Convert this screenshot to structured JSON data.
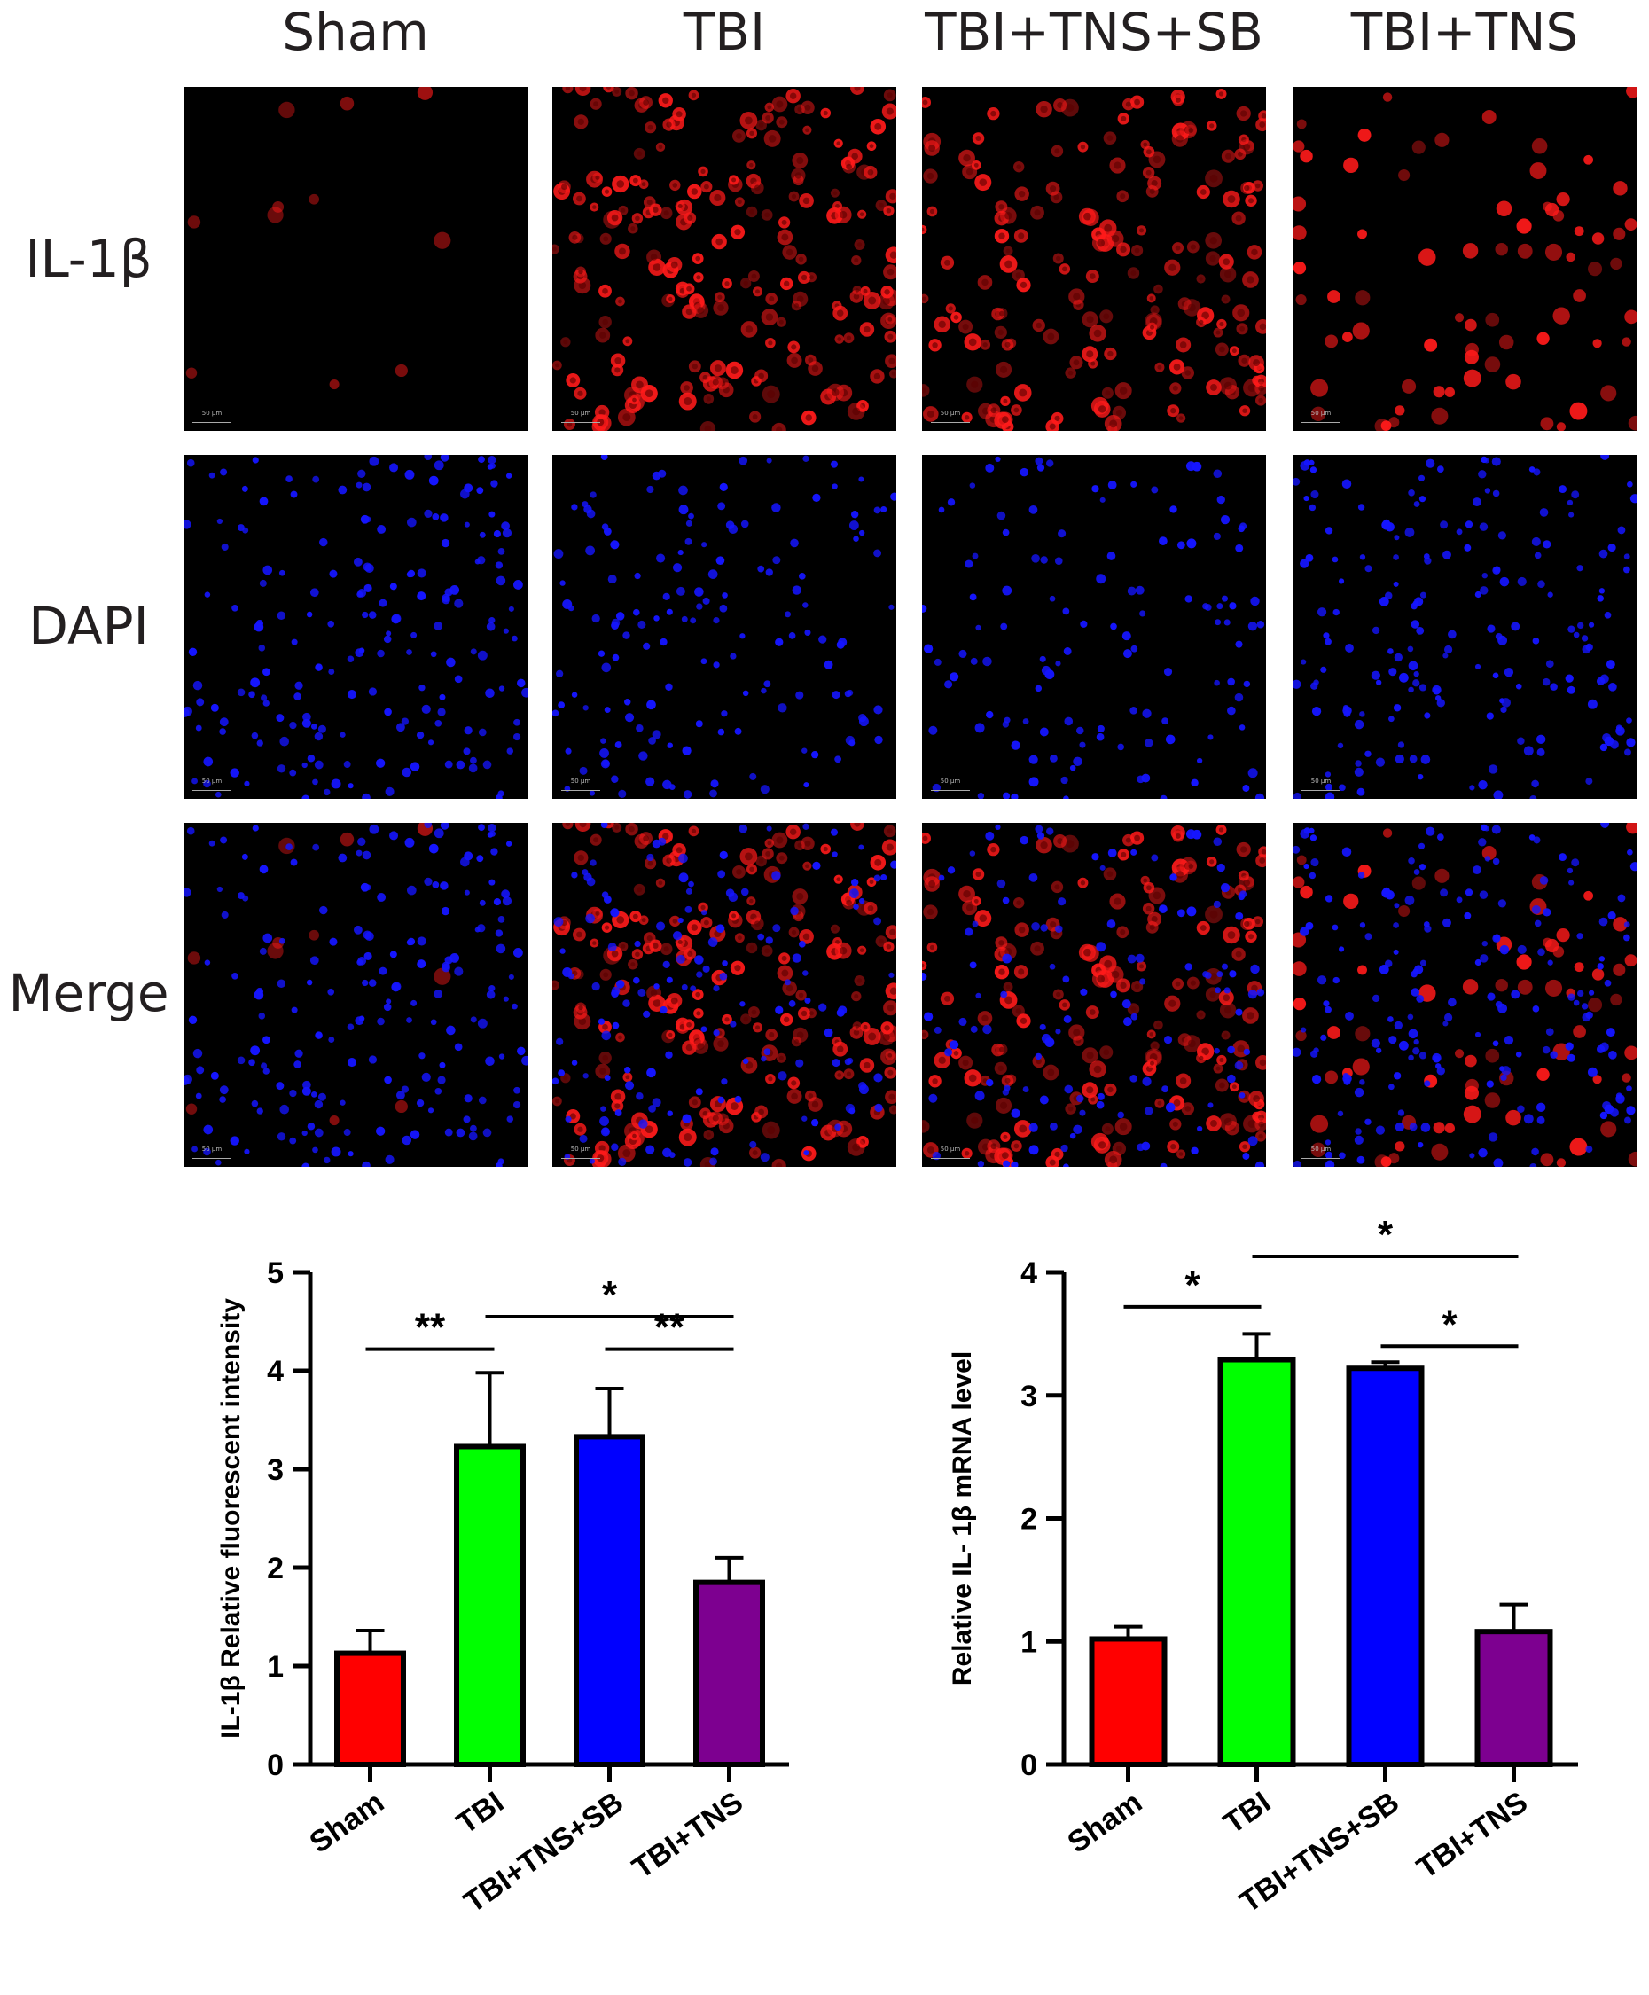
{
  "columns": [
    "Sham",
    "TBI",
    "TBI+TNS+SB",
    "TBI+TNS"
  ],
  "rows": [
    "IL-1β",
    "DAPI",
    "Merge"
  ],
  "scale_bar_label": "50 μm",
  "colors": {
    "sham": "#ff0000",
    "tbi": "#00ff00",
    "tbi_tns_sb": "#0000ff",
    "tbi_tns": "#7d0090",
    "il1b_stain": "#ff1a1a",
    "dapi_stain": "#1515ff"
  },
  "panel_intensity": {
    "il1b": [
      0.05,
      1.0,
      0.85,
      0.35
    ],
    "dapi": [
      1.0,
      0.8,
      0.65,
      1.0
    ]
  },
  "chart_data": [
    {
      "type": "bar",
      "categories": [
        "Sham",
        "TBI",
        "TBI+TNS+SB",
        "TBI+TNS"
      ],
      "values": [
        1.13,
        3.23,
        3.33,
        1.85
      ],
      "errors": [
        0.23,
        0.75,
        0.49,
        0.25
      ],
      "ylabel": "IL-1β Relative fluorescent intensity",
      "xlabel": "",
      "ylim": [
        0,
        5
      ],
      "yticks": [
        "0",
        "1",
        "2",
        "3",
        "4",
        "5"
      ],
      "significance": [
        {
          "from": 0,
          "to": 1,
          "label": "**",
          "y": 4.22
        },
        {
          "from": 1,
          "to": 3,
          "label": "*",
          "y": 4.55
        },
        {
          "from": 2,
          "to": 3,
          "label": "**",
          "y": 4.22
        }
      ]
    },
    {
      "type": "bar",
      "categories": [
        "Sham",
        "TBI",
        "TBI+TNS+SB",
        "TBI+TNS"
      ],
      "values": [
        1.02,
        3.29,
        3.22,
        1.08
      ],
      "errors": [
        0.1,
        0.21,
        0.05,
        0.22
      ],
      "ylabel": "Relative IL- 1β mRNA level",
      "xlabel": "",
      "ylim": [
        0,
        4
      ],
      "yticks": [
        "0",
        "1",
        "2",
        "3",
        "4"
      ],
      "significance": [
        {
          "from": 0,
          "to": 1,
          "label": "*",
          "y": 3.72
        },
        {
          "from": 1,
          "to": 3,
          "label": "*",
          "y": 4.13
        },
        {
          "from": 2,
          "to": 3,
          "label": "*",
          "y": 3.4
        }
      ]
    }
  ]
}
